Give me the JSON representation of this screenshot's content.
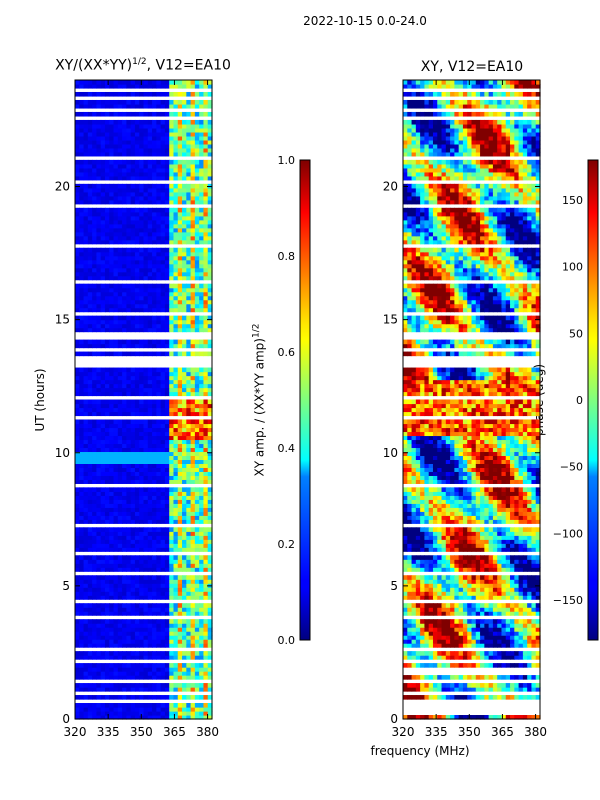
{
  "chart_data": {
    "type": "heatmap",
    "date_title": "2022-10-15 0.0-24.0",
    "shared_xlabel": "frequency (MHz)",
    "panels": [
      {
        "id": "amp",
        "title_main": "XY/(XX*YY)",
        "title_sup": "1/2",
        "title_tail": ", V12=EA10",
        "ylabel": "UT (hours)",
        "xlim": [
          320,
          382
        ],
        "ylim": [
          0,
          24
        ],
        "xticks": [
          320,
          335,
          350,
          365,
          380
        ],
        "yticks": [
          0,
          5,
          10,
          15,
          20
        ],
        "colorbar": {
          "label_main": "XY amp. / (XX*YY amp)",
          "label_sup": "1/2",
          "range": [
            0.0,
            1.0
          ],
          "ticks": [
            "0.0",
            "0.2",
            "0.4",
            "0.6",
            "0.8",
            "1.0"
          ],
          "tick_values": [
            0.0,
            0.2,
            0.4,
            0.6,
            0.8,
            1.0
          ]
        }
      },
      {
        "id": "phase",
        "title_main": "XY, V12=EA10",
        "title_sup": "",
        "title_tail": "",
        "ylabel": "",
        "xlim": [
          320,
          382
        ],
        "ylim": [
          0,
          24
        ],
        "xticks": [
          320,
          335,
          350,
          365,
          380
        ],
        "yticks": [
          0,
          5,
          10,
          15,
          20
        ],
        "colorbar": {
          "label_main": "phase (deg)",
          "label_sup": "",
          "range": [
            -180,
            180
          ],
          "ticks": [
            "-150",
            "-100",
            "-50",
            "0",
            "50",
            "100",
            "150"
          ],
          "tick_values": [
            -150,
            -100,
            -50,
            0,
            50,
            100,
            150
          ]
        }
      }
    ]
  }
}
